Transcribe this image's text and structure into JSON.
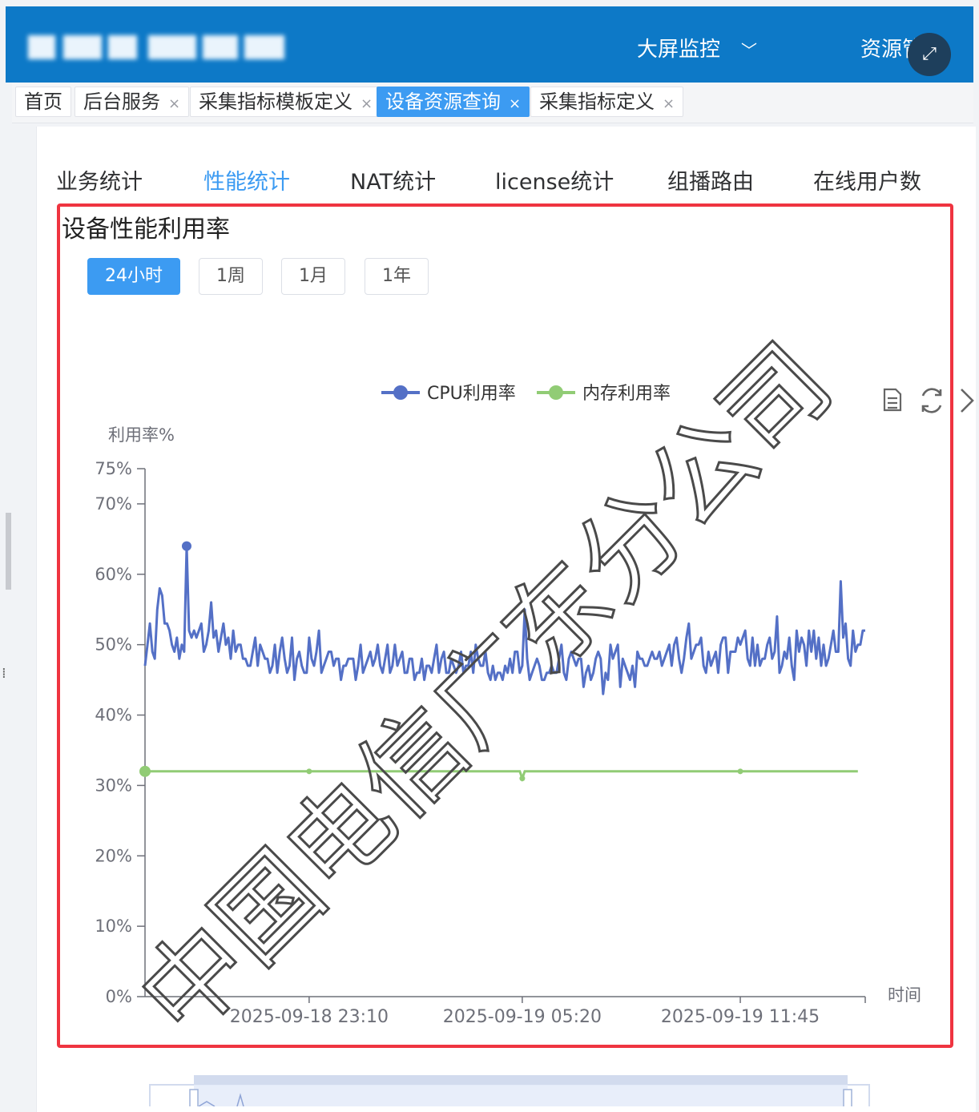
{
  "header": {
    "nav": [
      {
        "label": "大屏监控"
      },
      {
        "label": "资源管理"
      }
    ],
    "fullscreen_icon": "expand-icon"
  },
  "tabs": [
    {
      "label": "首页",
      "closable": false,
      "active": false
    },
    {
      "label": "后台服务",
      "closable": true,
      "active": false
    },
    {
      "label": "采集指标模板定义",
      "closable": true,
      "active": false
    },
    {
      "label": "设备资源查询",
      "closable": true,
      "active": true
    },
    {
      "label": "采集指标定义",
      "closable": true,
      "active": false
    }
  ],
  "sub_tabs": [
    {
      "label": "业务统计",
      "active": false
    },
    {
      "label": "性能统计",
      "active": true
    },
    {
      "label": "NAT统计",
      "active": false
    },
    {
      "label": "license统计",
      "active": false
    },
    {
      "label": "组播路由",
      "active": false
    },
    {
      "label": "在线用户数",
      "active": false
    }
  ],
  "panel": {
    "title": "设备性能利用率",
    "ranges": [
      {
        "label": "24小时",
        "active": true
      },
      {
        "label": "1周",
        "active": false
      },
      {
        "label": "1月",
        "active": false
      },
      {
        "label": "1年",
        "active": false
      }
    ],
    "toolbox_icons": [
      "data-view-icon",
      "restore-icon",
      "close-icon"
    ]
  },
  "watermark": "中国电信广东分公司",
  "colors": {
    "accent": "#3c9bf2",
    "header": "#0d79c7",
    "cpu": "#5470c6",
    "mem": "#91cc75",
    "frame": "#ef3440"
  },
  "chart_data": {
    "type": "line",
    "ylabel": "利用率%",
    "xlabel": "时间",
    "ylim": [
      0,
      75
    ],
    "yticks": [
      "0%",
      "10%",
      "20%",
      "30%",
      "40%",
      "50%",
      "60%",
      "70%",
      "75%"
    ],
    "ytick_values": [
      0,
      10,
      20,
      30,
      40,
      50,
      60,
      70,
      75
    ],
    "xticks": [
      "2025-09-18 23:10",
      "2025-09-19 05:20",
      "2025-09-19 11:45"
    ],
    "legend": [
      "CPU利用率",
      "内存利用率"
    ],
    "legend_position": "top-center",
    "series": [
      {
        "name": "CPU利用率",
        "values": [
          47,
          50,
          53,
          49,
          48,
          55,
          58,
          57,
          53,
          53,
          52,
          50,
          49,
          51,
          48,
          50,
          49,
          64,
          52,
          51,
          52,
          51,
          52,
          53,
          49,
          50,
          52,
          56,
          51,
          52,
          49,
          51,
          53,
          50,
          51,
          48,
          52,
          49,
          50,
          50,
          48,
          48,
          47,
          47,
          49,
          51,
          47,
          50,
          49,
          48,
          48,
          46,
          47,
          50,
          46,
          49,
          51,
          48,
          46,
          47,
          51,
          45,
          48,
          49,
          47,
          46,
          46,
          51,
          48,
          47,
          49,
          52,
          46,
          47,
          48,
          49,
          49,
          47,
          48,
          48,
          45,
          47,
          47,
          48,
          48,
          48,
          45,
          47,
          50,
          46,
          47,
          48,
          49,
          47,
          48,
          50,
          47,
          46,
          48,
          50,
          46,
          47,
          50,
          47,
          48,
          49,
          46,
          46,
          48,
          48,
          45,
          46,
          46,
          48,
          45,
          47,
          47,
          46,
          48,
          50,
          46,
          48,
          49,
          46,
          46,
          48,
          47,
          46,
          47,
          49,
          46,
          47,
          47,
          49,
          46,
          50,
          48,
          47,
          47,
          49,
          46,
          45,
          47,
          45,
          46,
          46,
          45,
          47,
          46,
          48,
          46,
          49,
          49,
          46,
          47,
          55,
          48,
          45,
          46,
          47,
          48,
          47,
          45,
          45,
          46,
          46,
          47,
          46,
          46,
          48,
          50,
          46,
          45,
          48,
          49,
          48,
          47,
          48,
          48,
          44,
          46,
          47,
          45,
          46,
          48,
          49,
          48,
          43,
          46,
          45,
          50,
          48,
          49,
          50,
          44,
          48,
          47,
          46,
          45,
          47,
          44,
          49,
          48,
          48,
          47,
          47,
          48,
          49,
          48,
          48,
          49,
          47,
          48,
          49,
          50,
          47,
          50,
          51,
          48,
          46,
          48,
          51,
          53,
          48,
          49,
          50,
          50,
          51,
          47,
          46,
          49,
          47,
          48,
          49,
          46,
          50,
          51,
          51,
          46,
          49,
          49,
          49,
          51,
          50,
          51,
          52,
          48,
          47,
          51,
          47,
          50,
          47,
          48,
          48,
          50,
          51,
          48,
          49,
          54,
          46,
          47,
          49,
          48,
          51,
          47,
          45,
          52,
          49,
          51,
          50,
          47,
          52,
          49,
          52,
          48,
          51,
          47,
          50,
          47,
          48,
          50,
          52,
          49,
          49,
          59,
          51,
          53,
          48,
          47,
          52,
          49,
          50,
          50,
          52,
          52
        ]
      },
      {
        "name": "内存利用率",
        "values": [
          32,
          32,
          32,
          32,
          32,
          32,
          32,
          32,
          32,
          32,
          32,
          32,
          32,
          32,
          32,
          32,
          32,
          32,
          32,
          32,
          32,
          32,
          32,
          32,
          32,
          32,
          32,
          32,
          32,
          32,
          32,
          32,
          32,
          32,
          32,
          32,
          32,
          32,
          32,
          32,
          32,
          32,
          32,
          32,
          32,
          32,
          32,
          32,
          32,
          32,
          32,
          32,
          32,
          32,
          32,
          32,
          32,
          32,
          32,
          32,
          32,
          32,
          32,
          32,
          32,
          32,
          32,
          32,
          32,
          32,
          32,
          32,
          32,
          32,
          32,
          32,
          32,
          32,
          32,
          32,
          32,
          32,
          32,
          32,
          32,
          32,
          32,
          32,
          32,
          32,
          32,
          32,
          32,
          32,
          32,
          32,
          32,
          32,
          32,
          32,
          32,
          32,
          32,
          32,
          32,
          32,
          32,
          32,
          32,
          32,
          32,
          32,
          32,
          32,
          32,
          32,
          32,
          32,
          32,
          32,
          32,
          32,
          32,
          32,
          32,
          32,
          32,
          32,
          32,
          32,
          32,
          32,
          32,
          32,
          32,
          32,
          32,
          32,
          32,
          32,
          32,
          32,
          32,
          32,
          32,
          32,
          32,
          32,
          32,
          32,
          32,
          32,
          32,
          32,
          31,
          32,
          32,
          32,
          32,
          32,
          32,
          32,
          32,
          32,
          32,
          32,
          32,
          32,
          32,
          32,
          32,
          32,
          32,
          32,
          32,
          32,
          32,
          32,
          32,
          32,
          32,
          32,
          32,
          32,
          32,
          32,
          32,
          32,
          32,
          32,
          32,
          32,
          32,
          32,
          32,
          32,
          32,
          32,
          32,
          32,
          32,
          32,
          32,
          32,
          32,
          32,
          32,
          32,
          32,
          32,
          32,
          32,
          32,
          32,
          32,
          32,
          32,
          32,
          32,
          32,
          32,
          32,
          32,
          32,
          32,
          32,
          32,
          32,
          32,
          32,
          32,
          32,
          32,
          32,
          32,
          32,
          32,
          32,
          32,
          32,
          32,
          32,
          32,
          32,
          32,
          32,
          32,
          32,
          32,
          32,
          32,
          32,
          32,
          32,
          32,
          32,
          32,
          32,
          32,
          32,
          32,
          32,
          32,
          32,
          32,
          32,
          32,
          32,
          32,
          32,
          32,
          32,
          32,
          32,
          32,
          32,
          32,
          32,
          32,
          32,
          32,
          32,
          32,
          32,
          32,
          32,
          32,
          32,
          32,
          32,
          32,
          32
        ]
      }
    ],
    "x_tick_indices": [
      67,
      154,
      243
    ],
    "grid": false
  }
}
